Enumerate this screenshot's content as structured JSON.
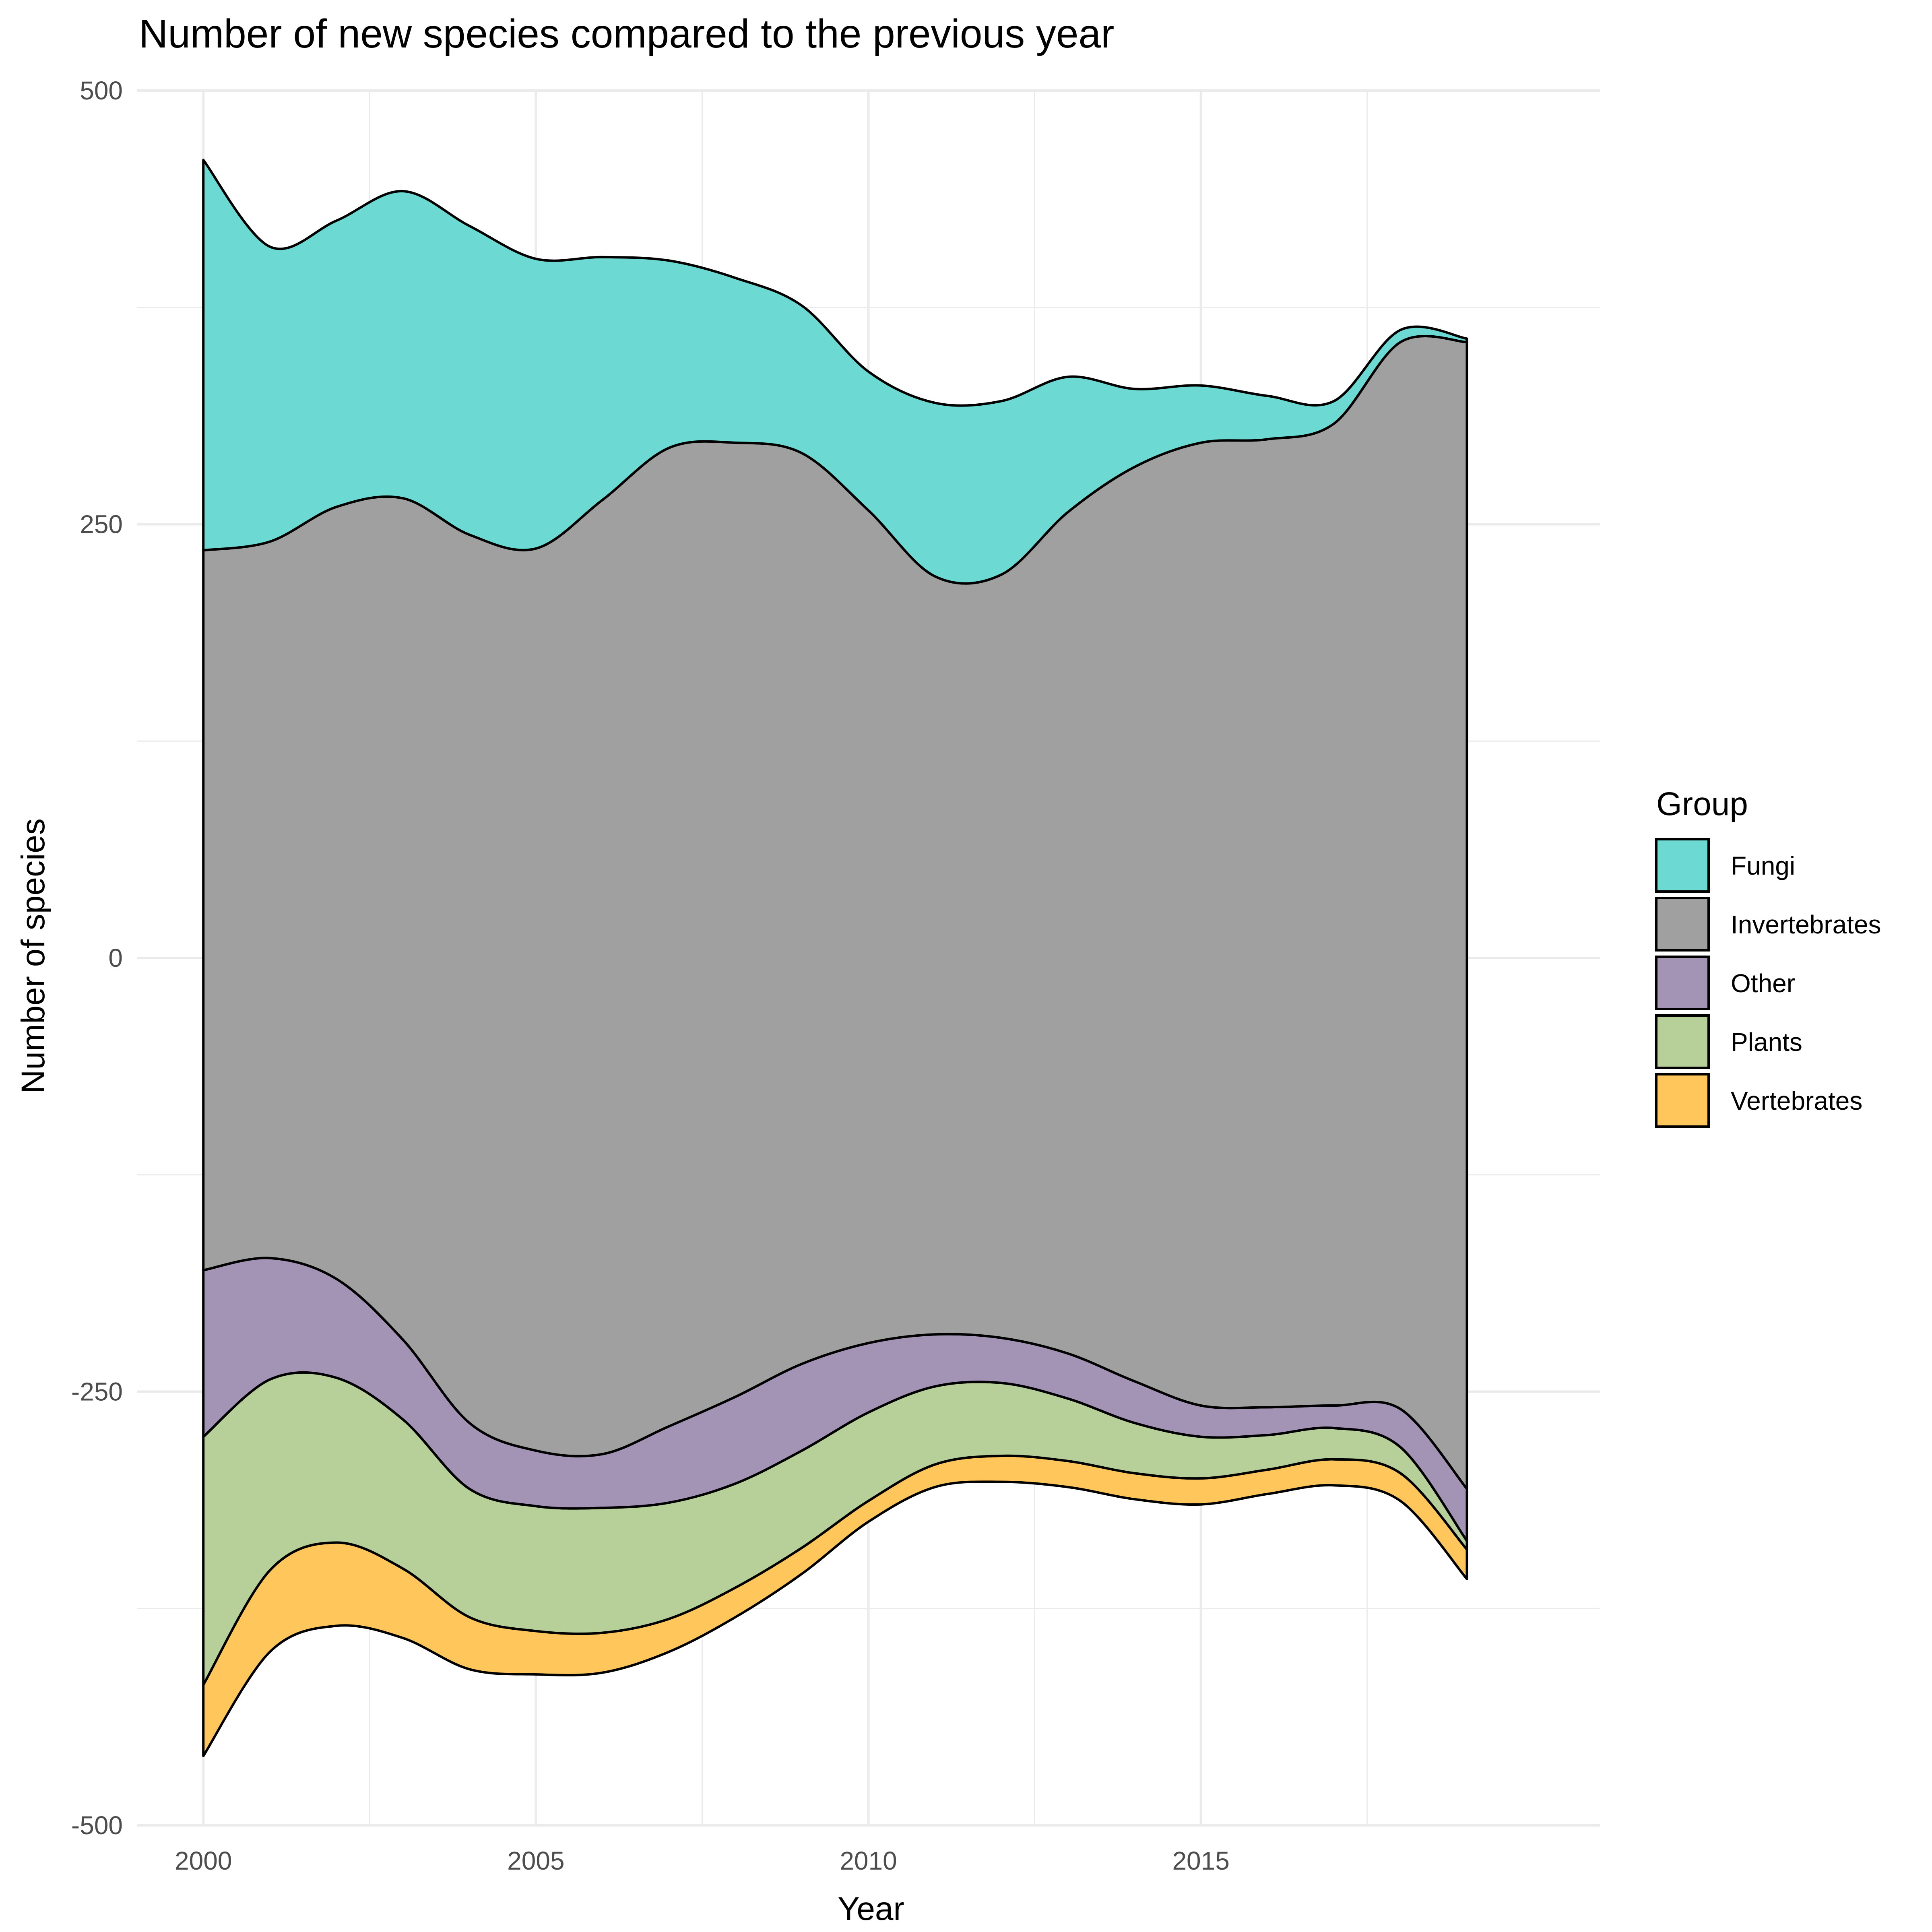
{
  "chart_data": {
    "type": "area",
    "subtype": "streamgraph",
    "title": "Number of new species compared to the previous year",
    "xlabel": "Year",
    "ylabel": "Number of species",
    "x_ticks": [
      "2000",
      "2005",
      "2010",
      "2015"
    ],
    "y_ticks": [
      "500",
      "250",
      "0",
      "-250",
      "-500"
    ],
    "xlim": [
      1999,
      2021
    ],
    "ylim": [
      -500,
      500
    ],
    "grid": true,
    "legend": {
      "title": "Group",
      "position": "right"
    },
    "x": [
      2000,
      2001,
      2002,
      2003,
      2004,
      2005,
      2006,
      2007,
      2008,
      2009,
      2010,
      2011,
      2012,
      2013,
      2014,
      2015,
      2016,
      2017,
      2018,
      2019
    ],
    "baseline": [
      -460,
      -400,
      -385,
      -392,
      -410,
      -413,
      -412,
      -400,
      -380,
      -355,
      -325,
      -305,
      -302,
      -305,
      -312,
      -315,
      -309,
      -304,
      -313,
      -358
    ],
    "series": [
      {
        "name": "Vertebrates",
        "color": "#ffc65c",
        "values": [
          41,
          47,
          48,
          40,
          30,
          25,
          23,
          19,
          17,
          15,
          12,
          13,
          15,
          15,
          15,
          15,
          14,
          15,
          16,
          17
        ]
      },
      {
        "name": "Plants",
        "color": "#b7cf98",
        "values": [
          143,
          110,
          95,
          86,
          74,
          72,
          72,
          67,
          60,
          56,
          51,
          45,
          42,
          36,
          29,
          24,
          20,
          18,
          15,
          5
        ]
      },
      {
        "name": "Other",
        "color": "#a393b5",
        "values": [
          96,
          70,
          57,
          46,
          38,
          32,
          31,
          44,
          50,
          50,
          40,
          30,
          26,
          26,
          24,
          18,
          16,
          13,
          22,
          30
        ]
      },
      {
        "name": "Invertebrates",
        "color": "#a0a0a0",
        "values": [
          415,
          413,
          445,
          485,
          512,
          520,
          550,
          564,
          550,
          525,
          480,
          437,
          440,
          485,
          527,
          555,
          558,
          566,
          615,
          661
        ]
      },
      {
        "name": "Fungi",
        "color": "#6cd9d3",
        "values": [
          225,
          170,
          165,
          177,
          178,
          167,
          140,
          108,
          95,
          85,
          80,
          100,
          100,
          78,
          45,
          33,
          25,
          13,
          7,
          2
        ]
      }
    ]
  }
}
